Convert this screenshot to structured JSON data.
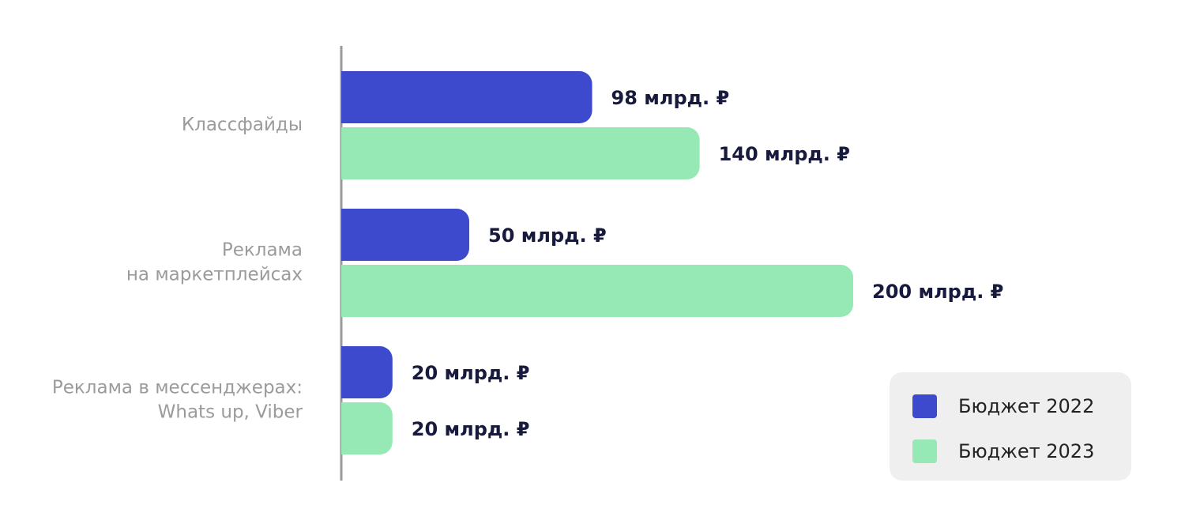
{
  "chart_data": {
    "type": "bar",
    "orientation": "horizontal",
    "categories": [
      [
        "Классфайды"
      ],
      [
        "Реклама",
        "на маркетплейсах"
      ],
      [
        "Реклама в мессенджерах:",
        "Whats up, Viber"
      ]
    ],
    "series": [
      {
        "name": "Бюджет 2022",
        "color": "#3d4acd",
        "values": [
          98,
          50,
          20
        ],
        "value_labels": [
          "98 млрд. ₽",
          "50 млрд. ₽",
          "20 млрд. ₽"
        ]
      },
      {
        "name": "Бюджет 2023",
        "color": "#96e9b4",
        "values": [
          140,
          200,
          20
        ],
        "value_labels": [
          "140 млрд. ₽",
          "200 млрд. ₽",
          "20 млрд. ₽"
        ]
      }
    ],
    "xlim": [
      0,
      200
    ],
    "legend": "lower-right"
  }
}
